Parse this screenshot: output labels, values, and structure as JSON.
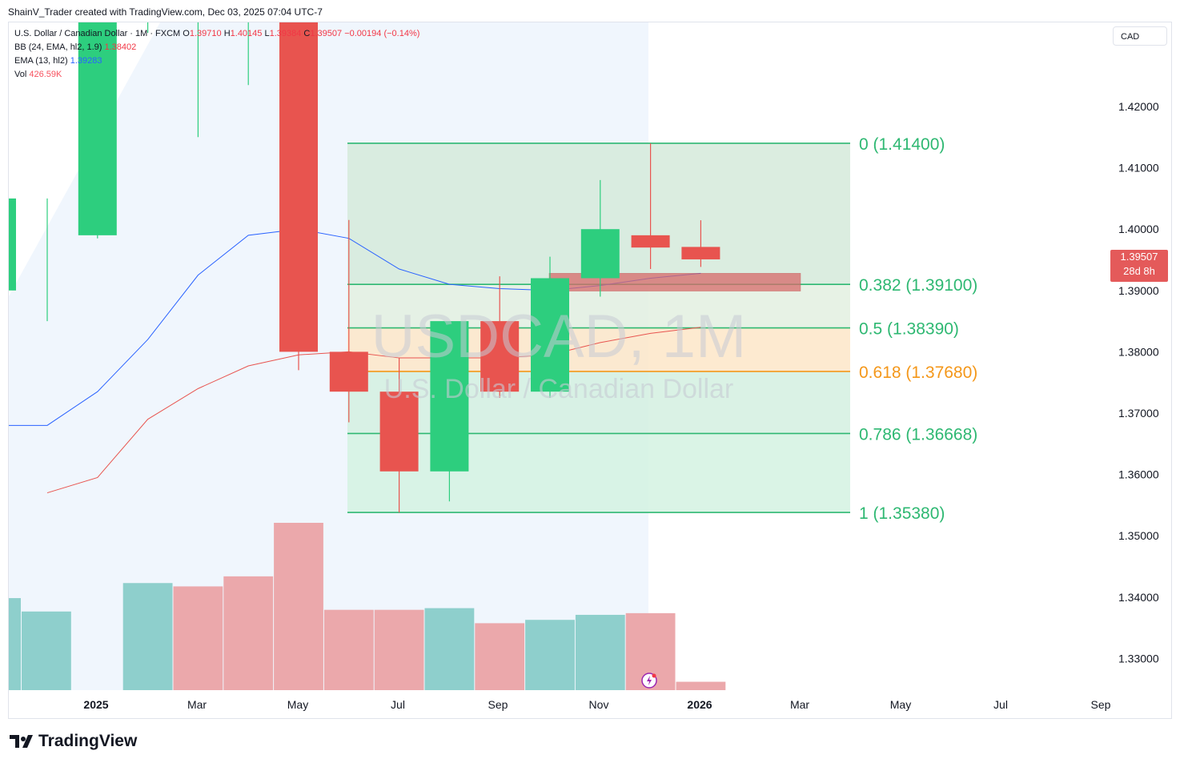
{
  "header": {
    "text": "ShainV_Trader created with TradingView.com, Dec 03, 2025 07:04 UTC-7"
  },
  "legend": {
    "symbol_line": "U.S. Dollar / Canadian Dollar · 1M · FXCM",
    "ohlc": {
      "o_label": "O",
      "o": "1.39710",
      "h_label": "H",
      "h": "1.40145",
      "l_label": "L",
      "l": "1.39384",
      "c_label": "C",
      "c": "1.39507",
      "change": "−0.00194 (−0.14%)"
    },
    "bb_label": "BB (24, EMA, hl2, 1.9)",
    "bb_value": "1.38402",
    "ema_label": "EMA (13, hl2)",
    "ema_value": "1.39283",
    "vol_label": "Vol",
    "vol_value": "426.59K"
  },
  "currency_button": "CAD",
  "last_price": {
    "price": "1.39507",
    "countdown": "28d 8h"
  },
  "watermark": {
    "symbol": "USDCAD, 1M",
    "name": "U.S. Dollar / Canadian Dollar"
  },
  "brand": "TradingView",
  "colors": {
    "up": "#2dce7e",
    "down": "#e8544f",
    "vol_up": "#8ecfcc",
    "vol_down": "#eba8ab",
    "ema": "#2962ff",
    "bb": "#e8544f",
    "fib_green": "#2eb872",
    "fib_orange": "#f49719"
  },
  "chart_data": {
    "type": "candlestick",
    "x_ticks": [
      "2025",
      "Mar",
      "May",
      "Jul",
      "Sep",
      "Nov",
      "2026",
      "Mar",
      "May",
      "Jul",
      "Sep"
    ],
    "y_ticks": [
      "1.42000",
      "1.41000",
      "1.40000",
      "1.39000",
      "1.38000",
      "1.37000",
      "1.36000",
      "1.35000",
      "1.34000",
      "1.33000"
    ],
    "candles": [
      {
        "month": "2024-11",
        "open": 1.39,
        "high": 1.405,
        "low": 1.385,
        "close": 1.405
      },
      {
        "month": "2024-12",
        "open": 1.399,
        "high": 1.4467,
        "low": 1.3985,
        "close": 1.438
      },
      {
        "month": "2025-01",
        "open": 1.437,
        "high": 1.447,
        "low": 1.432,
        "close": 1.438
      },
      {
        "month": "2025-02",
        "open": 1.438,
        "high": 1.455,
        "low": 1.415,
        "close": 1.44
      },
      {
        "month": "2025-03",
        "open": 1.438,
        "high": 1.448,
        "low": 1.4235,
        "close": 1.438
      },
      {
        "month": "2025-04",
        "open": 1.438,
        "high": 1.4415,
        "low": 1.377,
        "close": 1.38
      },
      {
        "month": "2025-05",
        "open": 1.38,
        "high": 1.4015,
        "low": 1.3685,
        "close": 1.3735
      },
      {
        "month": "2025-06",
        "open": 1.3735,
        "high": 1.379,
        "low": 1.3538,
        "close": 1.3605
      },
      {
        "month": "2025-07",
        "open": 1.3605,
        "high": 1.385,
        "low": 1.3556,
        "close": 1.385
      },
      {
        "month": "2025-08",
        "open": 1.385,
        "high": 1.3923,
        "low": 1.3725,
        "close": 1.3735
      },
      {
        "month": "2025-09",
        "open": 1.3735,
        "high": 1.3955,
        "low": 1.3725,
        "close": 1.392
      },
      {
        "month": "2025-10",
        "open": 1.392,
        "high": 1.408,
        "low": 1.389,
        "close": 1.4
      },
      {
        "month": "2025-11",
        "open": 1.399,
        "high": 1.414,
        "low": 1.3935,
        "close": 1.397
      },
      {
        "month": "2025-12",
        "open": 1.3971,
        "high": 1.40145,
        "low": 1.39384,
        "close": 1.39507
      }
    ],
    "ema": [
      1.368,
      1.3735,
      1.382,
      1.3925,
      1.399,
      1.4,
      1.3985,
      1.3935,
      1.391,
      1.3903,
      1.39,
      1.3908,
      1.392,
      1.3928
    ],
    "bb": [
      1.357,
      1.3595,
      1.369,
      1.374,
      1.3777,
      1.3795,
      1.38,
      1.379,
      1.379,
      1.379,
      1.3795,
      1.3815,
      1.383,
      1.384
    ],
    "volume": [
      {
        "month": "2024-11",
        "up": true,
        "value": 0.55
      },
      {
        "month": "2024-12",
        "up": true,
        "value": 0.47
      },
      {
        "month": "2025-01",
        "up": true,
        "value": 0.64
      },
      {
        "month": "2025-02",
        "up": false,
        "value": 0.62
      },
      {
        "month": "2025-03",
        "up": false,
        "value": 0.68
      },
      {
        "month": "2025-04",
        "up": false,
        "value": 1.0
      },
      {
        "month": "2025-05",
        "up": false,
        "value": 0.48
      },
      {
        "month": "2025-06",
        "up": false,
        "value": 0.48
      },
      {
        "month": "2025-07",
        "up": true,
        "value": 0.49
      },
      {
        "month": "2025-08",
        "up": false,
        "value": 0.4
      },
      {
        "month": "2025-09",
        "up": true,
        "value": 0.42
      },
      {
        "month": "2025-10",
        "up": true,
        "value": 0.45
      },
      {
        "month": "2025-11",
        "up": false,
        "value": 0.46
      },
      {
        "month": "2025-12",
        "up": false,
        "value": 0.05
      }
    ],
    "fib_levels": [
      {
        "ratio": "0",
        "price": 1.414,
        "label": "0 (1.41400)",
        "color": "green"
      },
      {
        "ratio": "0.382",
        "price": 1.391,
        "label": "0.382 (1.39100)",
        "color": "green"
      },
      {
        "ratio": "0.5",
        "price": 1.3839,
        "label": "0.5 (1.38390)",
        "color": "green"
      },
      {
        "ratio": "0.618",
        "price": 1.3768,
        "label": "0.618 (1.37680)",
        "color": "orange"
      },
      {
        "ratio": "0.786",
        "price": 1.36668,
        "label": "0.786 (1.36668)",
        "color": "green"
      },
      {
        "ratio": "1",
        "price": 1.3538,
        "label": "1 (1.35380)",
        "color": "green"
      }
    ],
    "zone": {
      "top": 1.3928,
      "bottom": 1.3899
    },
    "ylim": [
      1.3245,
      1.4315
    ]
  }
}
